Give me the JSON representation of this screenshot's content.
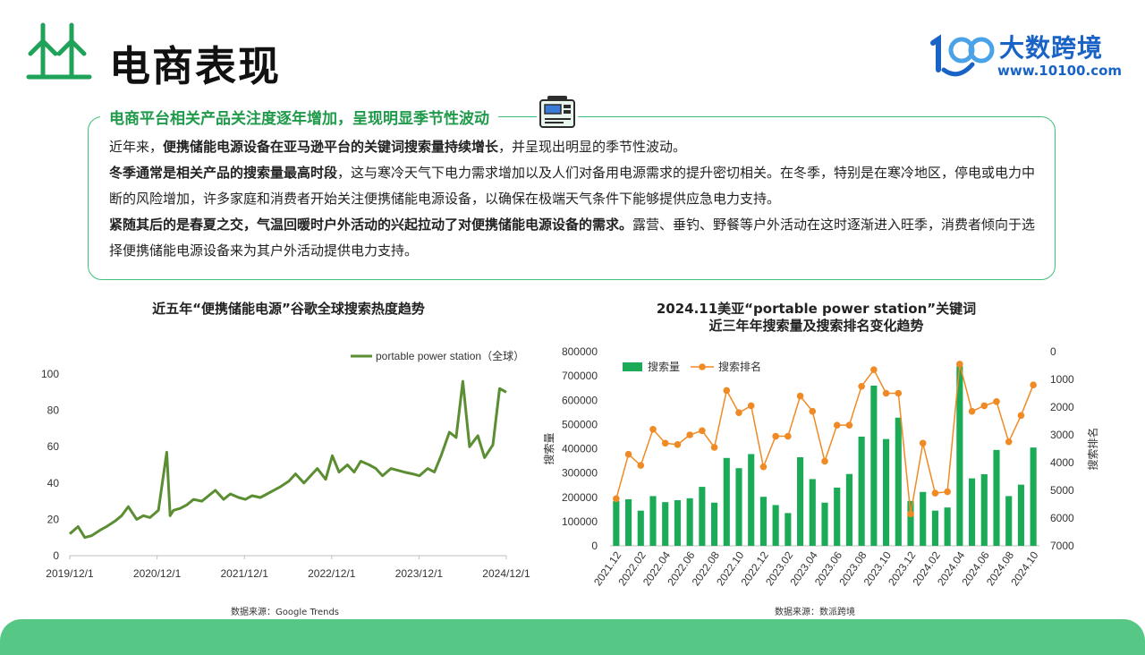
{
  "header": {
    "title": "电商表现",
    "brand_name": "大数跨境",
    "brand_url": "www.10100.com"
  },
  "callout": {
    "heading": "电商平台相关产品关注度逐年增加，呈现明显季节性波动",
    "p1_pre": "近年来，",
    "p1_bold": "便携储能电源设备在亚马逊平台的关键词搜索量持续增长",
    "p1_post": "，并呈现出明显的季节性波动。",
    "p2_bold": "冬季通常是相关产品的搜索量最高时段",
    "p2_post": "，这与寒冷天气下电力需求增加以及人们对备用电源需求的提升密切相关。在冬季，特别是在寒冷地区，停电或电力中断的风险增加，许多家庭和消费者开始关注便携储能电源设备，以确保在极端天气条件下能够提供应急电力支持。",
    "p3_bold": "紧随其后的是春夏之交，气温回暖时户外活动的兴起拉动了对便携储能电源设备的需求。",
    "p3_post": "露营、垂钓、野餐等户外活动在这时逐渐进入旺季，消费者倾向于选择便携储能电源设备来为其户外活动提供电力支持。"
  },
  "colors": {
    "green": "#5b8e32",
    "bar": "#1bab57",
    "rank": "#f08a24",
    "accent": "#1f9a4a",
    "brand": "#1a63c6"
  },
  "chart_data": [
    {
      "type": "line",
      "title": "近五年“便携储能电源”谷歌全球搜索热度趋势",
      "source": "数据来源：Google Trends",
      "legend_position": "top-right",
      "ylim": [
        0,
        100
      ],
      "y_ticks": [
        "0",
        "20",
        "40",
        "60",
        "80",
        "100"
      ],
      "x_range": [
        "2019-12-01",
        "2024-12-01"
      ],
      "x_ticks": [
        "2019/12/1",
        "2020/12/1",
        "2021/12/1",
        "2022/12/1",
        "2023/12/1",
        "2024/12/1"
      ],
      "series": [
        {
          "name": "portable power station（全球）",
          "x": [
            "2019-12-01",
            "2020-01-05",
            "2020-02-02",
            "2020-03-01",
            "2020-04-05",
            "2020-05-03",
            "2020-06-07",
            "2020-07-05",
            "2020-08-02",
            "2020-09-06",
            "2020-10-04",
            "2020-11-01",
            "2020-12-06",
            "2021-01-10",
            "2021-01-24",
            "2021-02-07",
            "2021-03-07",
            "2021-04-04",
            "2021-05-02",
            "2021-06-06",
            "2021-07-04",
            "2021-08-01",
            "2021-09-05",
            "2021-10-03",
            "2021-11-07",
            "2021-12-05",
            "2022-01-02",
            "2022-02-06",
            "2022-03-06",
            "2022-04-03",
            "2022-05-01",
            "2022-06-05",
            "2022-07-03",
            "2022-08-07",
            "2022-09-04",
            "2022-10-02",
            "2022-11-06",
            "2022-12-04",
            "2023-01-01",
            "2023-02-05",
            "2023-03-05",
            "2023-04-02",
            "2023-05-07",
            "2023-06-04",
            "2023-07-02",
            "2023-08-06",
            "2023-09-03",
            "2023-10-01",
            "2023-11-05",
            "2023-12-03",
            "2024-01-07",
            "2024-02-04",
            "2024-03-03",
            "2024-04-07",
            "2024-05-05",
            "2024-06-02",
            "2024-06-30",
            "2024-08-04",
            "2024-09-01",
            "2024-10-06",
            "2024-11-03",
            "2024-12-01"
          ],
          "values": [
            12,
            16,
            10,
            11,
            14,
            16,
            19,
            22,
            27,
            20,
            22,
            21,
            25,
            57,
            22,
            25,
            26,
            28,
            31,
            30,
            33,
            36,
            31,
            34,
            32,
            31,
            33,
            32,
            34,
            36,
            38,
            41,
            45,
            40,
            44,
            48,
            42,
            55,
            46,
            50,
            46,
            52,
            50,
            48,
            44,
            48,
            47,
            46,
            45,
            44,
            48,
            46,
            55,
            68,
            65,
            96,
            60,
            66,
            54,
            61,
            92,
            90
          ]
        }
      ]
    },
    {
      "type": "bar",
      "title_line1": "2024.11美亚“portable power station”关键词",
      "title_line2": "近三年年搜索量及搜索排名变化趋势",
      "source": "数据来源：数派跨境",
      "legend_position": "top-left",
      "ylabel": "搜索量",
      "y2label": "搜索排名",
      "ylim": [
        0,
        800000
      ],
      "y2lim": [
        0,
        7000
      ],
      "y2_inverted": true,
      "y_ticks": [
        "0",
        "100000",
        "200000",
        "300000",
        "400000",
        "500000",
        "600000",
        "700000",
        "800000"
      ],
      "y2_ticks": [
        "0",
        "1000",
        "2000",
        "3000",
        "4000",
        "5000",
        "6000",
        "7000"
      ],
      "categories": [
        "2021.12",
        "2022.01",
        "2022.02",
        "2022.03",
        "2022.04",
        "2022.05",
        "2022.06",
        "2022.07",
        "2022.08",
        "2022.09",
        "2022.10",
        "2022.11",
        "2022.12",
        "2023.01",
        "2023.02",
        "2023.03",
        "2023.04",
        "2023.05",
        "2023.06",
        "2023.07",
        "2023.08",
        "2023.09",
        "2023.10",
        "2023.11",
        "2023.12",
        "2024.01",
        "2024.02",
        "2024.03",
        "2024.04",
        "2024.05",
        "2024.06",
        "2024.07",
        "2024.08",
        "2024.09",
        "2024.10"
      ],
      "tick_labels_shown": [
        "2021.12",
        "2022.02",
        "2022.04",
        "2022.06",
        "2022.08",
        "2022.10",
        "2022.12",
        "2023.02",
        "2023.04",
        "2023.06",
        "2023.08",
        "2023.10",
        "2023.12",
        "2024.02",
        "2024.04",
        "2024.06",
        "2024.08",
        "2024.10"
      ],
      "series": [
        {
          "name": "搜索量",
          "type": "bar",
          "values": [
            185000,
            192000,
            145000,
            205000,
            180000,
            188000,
            196000,
            243000,
            178000,
            362000,
            320000,
            378000,
            202000,
            168000,
            135000,
            365000,
            275000,
            178000,
            240000,
            296000,
            450000,
            660000,
            440000,
            528000,
            185000,
            222000,
            145000,
            158000,
            740000,
            278000,
            295000,
            395000,
            205000,
            252000,
            405000
          ]
        },
        {
          "name": "搜索排名",
          "type": "line",
          "values": [
            5300,
            3700,
            4100,
            2800,
            3300,
            3350,
            3000,
            2850,
            3450,
            1400,
            2200,
            1950,
            4150,
            3050,
            3050,
            1600,
            2150,
            3950,
            2650,
            2650,
            1250,
            650,
            1500,
            1500,
            5850,
            3300,
            5100,
            5050,
            450,
            2150,
            1950,
            1800,
            3250,
            2300,
            1200
          ]
        }
      ]
    }
  ]
}
